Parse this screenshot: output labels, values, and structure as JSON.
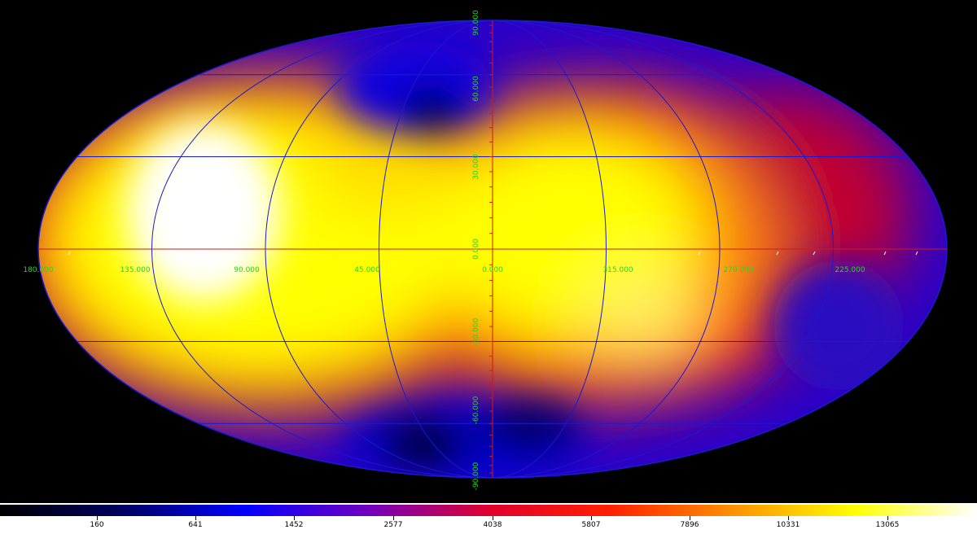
{
  "map": {
    "projection": "Mollweide (Aitoff-like all-sky)",
    "longitude_labels": [
      "180.000",
      "135.000",
      "90.000",
      "45.000",
      "0.000",
      "315.000",
      "270.000",
      "225.000"
    ],
    "latitude_labels": [
      "90.000",
      "60.000",
      "30.000",
      "0.000",
      "-30.000",
      "-60.000",
      "-90.000"
    ],
    "grid_color": "#1a1ad0",
    "equator_color": "#d01a1a",
    "label_color": "#22d822",
    "background": "#000000"
  },
  "colorbar": {
    "ticks": [
      "160",
      "641",
      "1452",
      "2577",
      "4038",
      "5807",
      "7896",
      "10331",
      "13065"
    ],
    "colors": [
      "#000000",
      "#000060",
      "#0000ff",
      "#7000c0",
      "#e00030",
      "#ff2000",
      "#ff9000",
      "#ffff00",
      "#ffffff"
    ]
  }
}
